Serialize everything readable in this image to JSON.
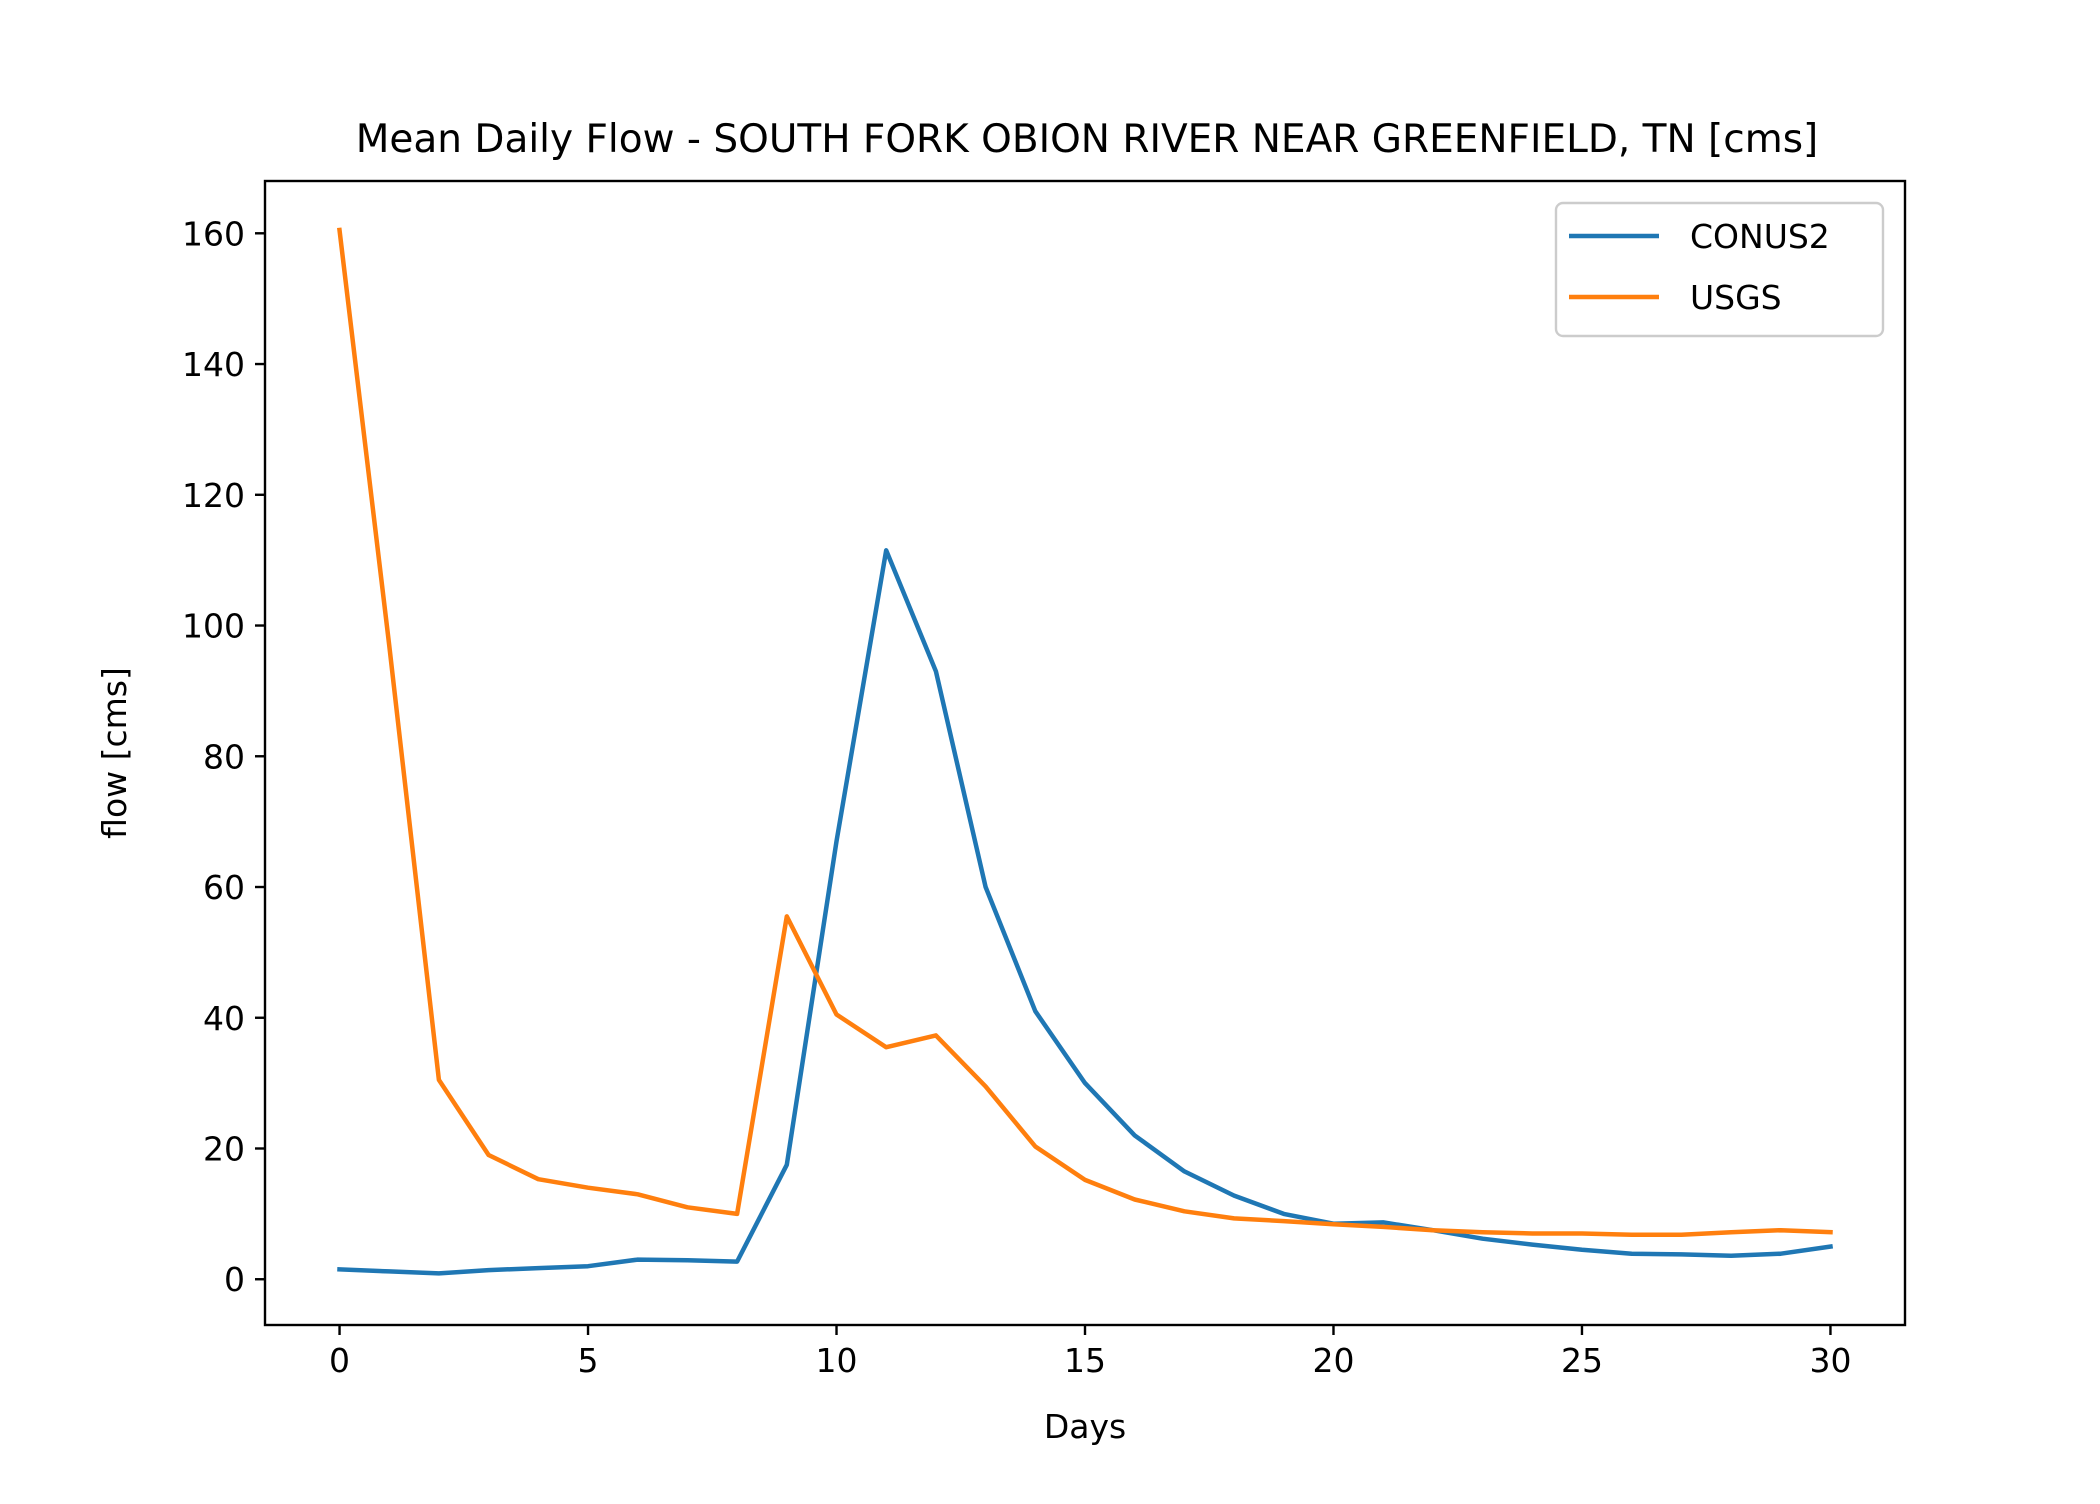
{
  "chart_data": {
    "type": "line",
    "title": "Mean Daily Flow - SOUTH FORK OBION RIVER NEAR GREENFIELD, TN [cms]",
    "xlabel": "Days",
    "ylabel": "flow [cms]",
    "xlim": [
      -1.5,
      31.5
    ],
    "ylim": [
      -7,
      168
    ],
    "xticks": [
      0,
      5,
      10,
      15,
      20,
      25,
      30
    ],
    "yticks": [
      0,
      20,
      40,
      60,
      80,
      100,
      120,
      140,
      160
    ],
    "grid": false,
    "legend_position": "top-right",
    "x": [
      0,
      1,
      2,
      3,
      4,
      5,
      6,
      7,
      8,
      9,
      10,
      11,
      12,
      13,
      14,
      15,
      16,
      17,
      18,
      19,
      20,
      21,
      22,
      23,
      24,
      25,
      26,
      27,
      28,
      29,
      30
    ],
    "series": [
      {
        "name": "CONUS2",
        "color": "#1f77b4",
        "values": [
          1.5,
          1.2,
          0.9,
          1.4,
          1.7,
          2.0,
          3.0,
          2.9,
          2.7,
          17.5,
          67.0,
          111.5,
          93.0,
          60.0,
          41.0,
          30.0,
          22.0,
          16.5,
          12.8,
          10.0,
          8.5,
          8.7,
          7.5,
          6.2,
          5.3,
          4.5,
          3.9,
          3.8,
          3.6,
          3.9,
          5.0
        ]
      },
      {
        "name": "USGS",
        "color": "#ff7f0e",
        "values": [
          160.5,
          97.0,
          30.5,
          19.0,
          15.3,
          14.0,
          13.0,
          11.0,
          10.0,
          55.5,
          40.5,
          35.5,
          37.3,
          29.5,
          20.3,
          15.2,
          12.2,
          10.4,
          9.3,
          8.9,
          8.4,
          8.0,
          7.5,
          7.2,
          7.0,
          7.0,
          6.8,
          6.8,
          7.2,
          7.5,
          7.2
        ]
      }
    ]
  }
}
